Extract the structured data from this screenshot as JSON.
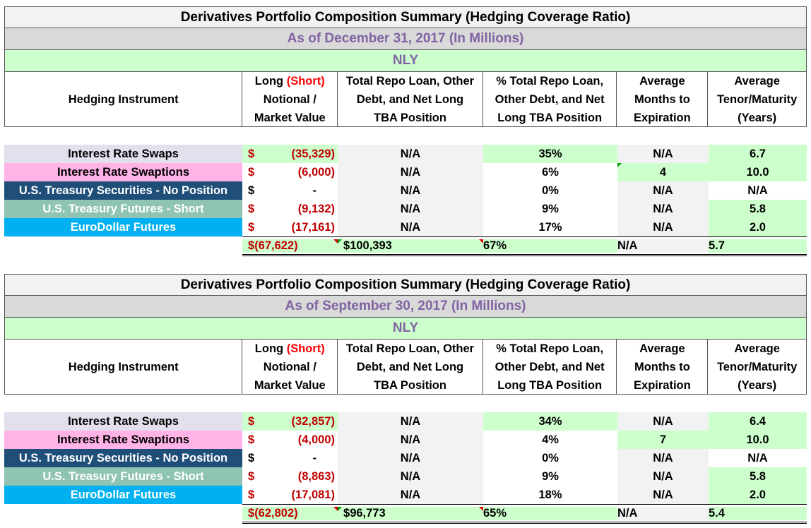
{
  "tables": [
    {
      "title": "Derivatives Portfolio Composition Summary (Hedging Coverage Ratio)",
      "date": "As of December 31, 2017 (In Millions)",
      "ticker": "NLY",
      "headers": {
        "instrument": "Hedging Instrument",
        "long_line1_a": "Long ",
        "long_line1_b": "(Short)",
        "long_line2": "Notional /",
        "long_line3": "Market Value",
        "repo_line1": "Total Repo Loan, Other",
        "repo_line2": "Debt, and Net Long",
        "repo_line3": "TBA Position",
        "pct_line1": "% Total Repo Loan,",
        "pct_line2": "Other Debt, and Net",
        "pct_line3": "Long TBA Position",
        "months_line1": "Average",
        "months_line2": "Months to",
        "months_line3": "Expiration",
        "tenor_line1": "Average",
        "tenor_line2": "Tenor/Maturity",
        "tenor_line3": "(Years)"
      },
      "rows": [
        {
          "name": "Interest Rate Swaps",
          "dollar": "$",
          "amount": "(35,329)",
          "repo": "N/A",
          "pct": "35%",
          "months": "N/A",
          "tenor": "6.7"
        },
        {
          "name": "Interest Rate Swaptions",
          "dollar": "$",
          "amount": "(6,000)",
          "repo": "N/A",
          "pct": "6%",
          "months": "4",
          "tenor": "10.0"
        },
        {
          "name": "U.S. Treasury Securities - No Position",
          "dollar": "$",
          "amount": "-",
          "repo": "N/A",
          "pct": "0%",
          "months": "N/A",
          "tenor": "N/A"
        },
        {
          "name": "U.S. Treasury Futures - Short",
          "dollar": "$",
          "amount": "(9,132)",
          "repo": "N/A",
          "pct": "9%",
          "months": "N/A",
          "tenor": "5.8"
        },
        {
          "name": "EuroDollar Futures",
          "dollar": "$",
          "amount": "(17,161)",
          "repo": "N/A",
          "pct": "17%",
          "months": "N/A",
          "tenor": "2.0"
        }
      ],
      "total": {
        "dollar": "$",
        "amount": "(67,622)",
        "repo_dollar": "$",
        "repo": "100,393",
        "pct": "67%",
        "months": "N/A",
        "tenor": "5.7"
      }
    },
    {
      "title": "Derivatives Portfolio Composition Summary (Hedging Coverage Ratio)",
      "date": "As of September 30, 2017 (In Millions)",
      "ticker": "NLY",
      "headers": {
        "instrument": "Hedging Instrument",
        "long_line1_a": "Long ",
        "long_line1_b": "(Short)",
        "long_line2": "Notional /",
        "long_line3": "Market Value",
        "repo_line1": "Total Repo Loan, Other",
        "repo_line2": "Debt, and Net Long",
        "repo_line3": "TBA Position",
        "pct_line1": "% Total Repo Loan,",
        "pct_line2": "Other Debt, and Net",
        "pct_line3": "Long TBA Position",
        "months_line1": "Average",
        "months_line2": "Months to",
        "months_line3": "Expiration",
        "tenor_line1": "Average",
        "tenor_line2": "Tenor/Maturity",
        "tenor_line3": "(Years)"
      },
      "rows": [
        {
          "name": "Interest Rate Swaps",
          "dollar": "$",
          "amount": "(32,857)",
          "repo": "N/A",
          "pct": "34%",
          "months": "N/A",
          "tenor": "6.4"
        },
        {
          "name": "Interest Rate Swaptions",
          "dollar": "$",
          "amount": "(4,000)",
          "repo": "N/A",
          "pct": "4%",
          "months": "7",
          "tenor": "10.0"
        },
        {
          "name": "U.S. Treasury Securities - No Position",
          "dollar": "$",
          "amount": "-",
          "repo": "N/A",
          "pct": "0%",
          "months": "N/A",
          "tenor": "N/A"
        },
        {
          "name": "U.S. Treasury Futures - Short",
          "dollar": "$",
          "amount": "(8,863)",
          "repo": "N/A",
          "pct": "9%",
          "months": "N/A",
          "tenor": "5.8"
        },
        {
          "name": "EuroDollar Futures",
          "dollar": "$",
          "amount": "(17,081)",
          "repo": "N/A",
          "pct": "18%",
          "months": "N/A",
          "tenor": "2.0"
        }
      ],
      "total": {
        "dollar": "$",
        "amount": "(62,802)",
        "repo_dollar": "$",
        "repo": "96,773",
        "pct": "65%",
        "months": "N/A",
        "tenor": "5.4"
      }
    }
  ]
}
